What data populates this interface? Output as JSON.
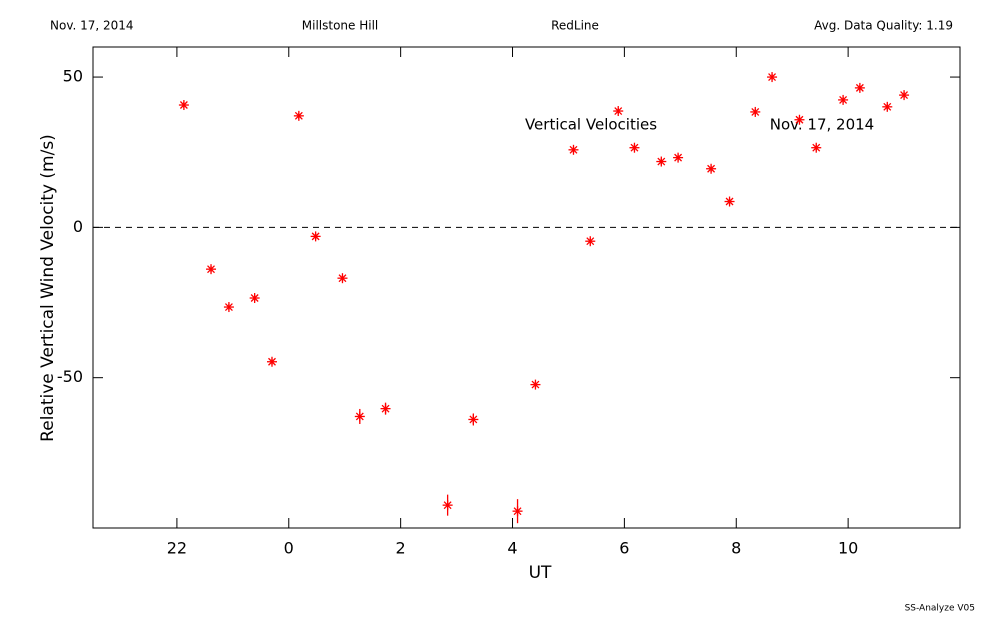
{
  "chart_data": {
    "type": "scatter",
    "header": [
      "Nov. 17, 2014",
      "Millstone Hill",
      "RedLine",
      "Avg. Data Quality: 1.19"
    ],
    "annotations": [
      "Vertical Velocities",
      "Nov. 17, 2014"
    ],
    "footer": "SS-Analyze V05",
    "x_label": "UT",
    "y_label": "Relative Vertical Wind Velocity (m/s)",
    "color": "#ff0000",
    "reference_line": 0,
    "xlim": [
      -3.5,
      12
    ],
    "xticks": [
      {
        "value": -2,
        "label": "22"
      },
      0,
      2,
      4,
      6,
      8,
      10
    ],
    "ylim": [
      -100,
      60
    ],
    "yticks": [
      -50,
      0,
      50
    ],
    "x": [
      -1.875,
      -1.39,
      -1.07,
      -0.61,
      -0.3,
      0.18,
      0.48,
      0.96,
      1.27,
      1.73,
      2.84,
      3.3,
      4.09,
      4.41,
      5.09,
      5.39,
      5.89,
      6.18,
      6.66,
      6.96,
      7.55,
      7.88,
      8.34,
      8.64,
      9.13,
      9.43,
      9.91,
      10.21,
      10.7,
      11.0
    ],
    "values": [
      40.7,
      -13.9,
      -26.5,
      -23.5,
      -44.7,
      37.1,
      -3.0,
      -16.9,
      -62.9,
      -60.3,
      -92.4,
      -63.9,
      -94.4,
      -52.3,
      25.8,
      -4.6,
      38.7,
      26.5,
      21.9,
      23.2,
      19.5,
      8.6,
      38.4,
      50.0,
      35.8,
      26.5,
      42.4,
      46.4,
      40.1,
      44.0
    ],
    "errors": [
      1,
      1,
      1,
      1,
      1,
      1,
      1,
      1,
      2.5,
      2,
      3.5,
      2,
      4,
      1,
      1,
      1,
      1,
      1,
      1,
      1,
      1,
      1,
      1,
      1,
      1,
      1,
      1,
      1,
      1,
      1
    ]
  }
}
